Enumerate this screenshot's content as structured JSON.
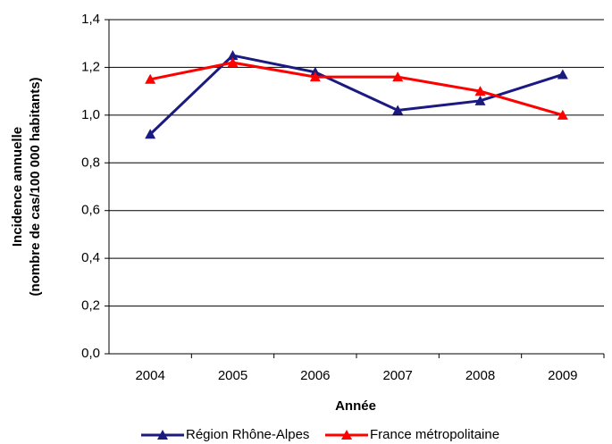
{
  "chart_data": {
    "type": "line",
    "x_label": "Année",
    "y_label": [
      "Incidence annuelle",
      "(nombre de cas/100 000 habitants)"
    ],
    "categories": [
      "2004",
      "2005",
      "2006",
      "2007",
      "2008",
      "2009"
    ],
    "series": [
      {
        "name": "Région Rhône-Alpes",
        "color": "#1a1a80",
        "values": [
          0.92,
          1.25,
          1.18,
          1.02,
          1.06,
          1.17
        ]
      },
      {
        "name": "France métropolitaine",
        "color": "#ff0000",
        "values": [
          1.15,
          1.22,
          1.16,
          1.16,
          1.1,
          1.0
        ]
      }
    ],
    "ylim": [
      0,
      1.4
    ],
    "yticks": [
      {
        "value": 0,
        "label": "0,0"
      },
      {
        "value": 0.2,
        "label": "0,2"
      },
      {
        "value": 0.4,
        "label": "0,4"
      },
      {
        "value": 0.6,
        "label": "0,6"
      },
      {
        "value": 0.8,
        "label": "0,8"
      },
      {
        "value": 1.0,
        "label": "1,0"
      },
      {
        "value": 1.2,
        "label": "1,2"
      },
      {
        "value": 1.4,
        "label": "1,4"
      }
    ],
    "grid": true,
    "legend": "bottom"
  }
}
